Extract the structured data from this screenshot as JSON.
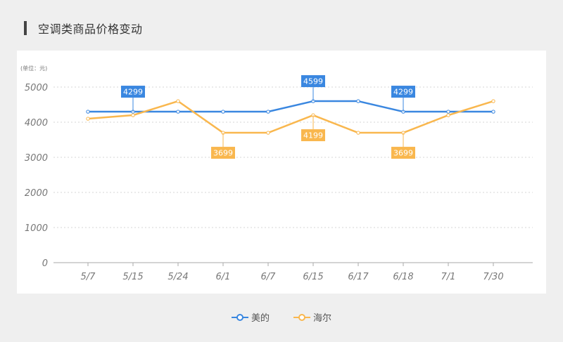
{
  "title": "空调类商品价格变动",
  "chart_data": {
    "type": "line",
    "unit_label": "(单位：元)",
    "categories": [
      "5/7",
      "5/15",
      "5/24",
      "6/1",
      "6/7",
      "6/15",
      "6/17",
      "6/18",
      "7/1",
      "7/30"
    ],
    "ylim": [
      0,
      5000
    ],
    "yticks": [
      0,
      1000,
      2000,
      3000,
      4000,
      5000
    ],
    "grid": true,
    "legend_position": "bottom-center",
    "series": [
      {
        "name": "美的",
        "color": "#3a87e0",
        "values": [
          4299,
          4299,
          4299,
          4299,
          4299,
          4599,
          4599,
          4299,
          4299,
          4299
        ],
        "labels": [
          {
            "index": 1,
            "text": "4299",
            "position": "above"
          },
          {
            "index": 5,
            "text": "4599",
            "position": "above"
          },
          {
            "index": 7,
            "text": "4299",
            "position": "above"
          }
        ]
      },
      {
        "name": "海尔",
        "color": "#f9b74e",
        "values": [
          4099,
          4199,
          4599,
          3699,
          3699,
          4199,
          3699,
          3699,
          4199,
          4599
        ],
        "labels": [
          {
            "index": 3,
            "text": "3699",
            "position": "below"
          },
          {
            "index": 5,
            "text": "4199",
            "position": "below"
          },
          {
            "index": 7,
            "text": "3699",
            "position": "below"
          }
        ]
      }
    ]
  }
}
